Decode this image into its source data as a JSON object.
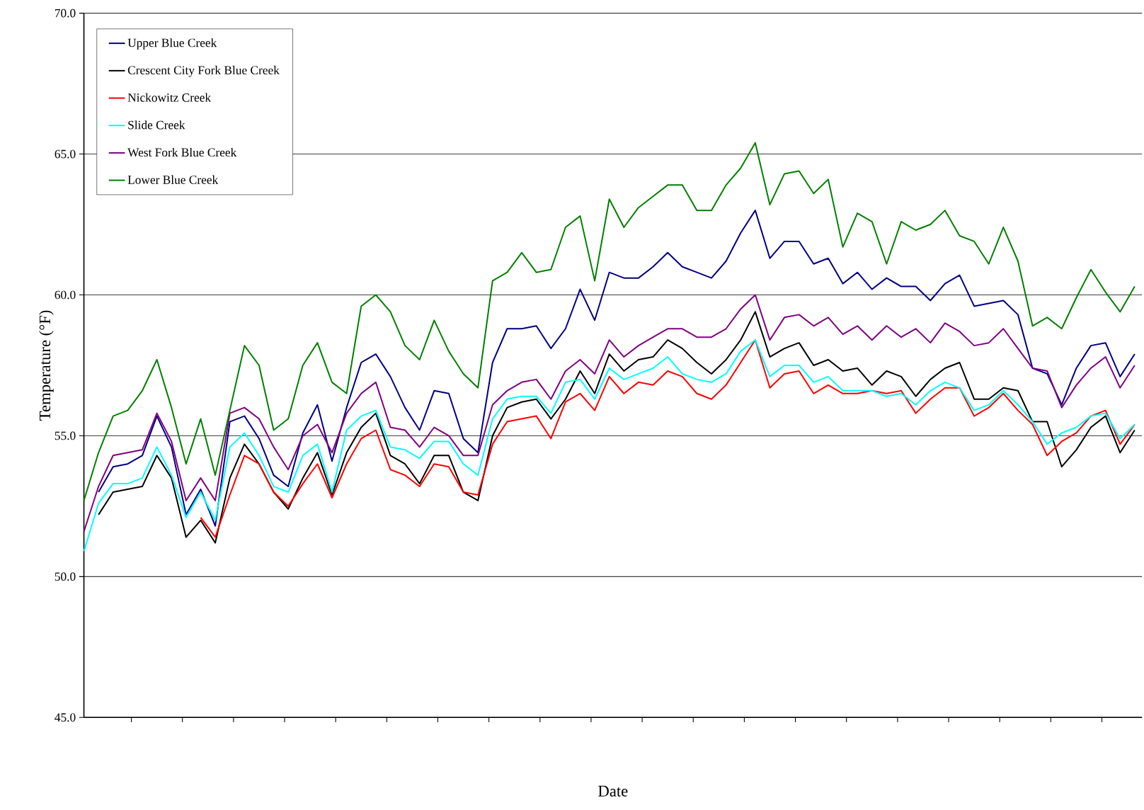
{
  "chart_data": {
    "type": "line",
    "xlabel": "Date",
    "ylabel": "Temperature (°F)",
    "categories": [
      null,
      null,
      null,
      null,
      null,
      null,
      null,
      null,
      null,
      null,
      null,
      null,
      null,
      null,
      null,
      null,
      null,
      null,
      null,
      null,
      null,
      null,
      null,
      null,
      null,
      null,
      null,
      null,
      null,
      null,
      null,
      null,
      null,
      null,
      null,
      null,
      null,
      null,
      null,
      null,
      null,
      null,
      null,
      null,
      null,
      null,
      null,
      null,
      null,
      null,
      null,
      null,
      null,
      null,
      null,
      null,
      null,
      null,
      null,
      null,
      null,
      null,
      null,
      null,
      null,
      null,
      null,
      null,
      null,
      null,
      null,
      null,
      null
    ],
    "series": [
      {
        "name": "Upper Blue Creek",
        "color": "#000080",
        "values": [
          null,
          53.0,
          53.9,
          54.0,
          54.3,
          55.7,
          54.6,
          52.2,
          53.1,
          51.8,
          55.5,
          55.7,
          54.9,
          53.6,
          53.2,
          55.1,
          56.1,
          54.1,
          56.0,
          57.6,
          57.9,
          57.1,
          56.0,
          55.2,
          56.6,
          56.5,
          54.9,
          54.4,
          57.6,
          58.8,
          58.8,
          58.9,
          58.1,
          58.8,
          60.2,
          59.1,
          60.8,
          60.6,
          60.6,
          61.0,
          61.5,
          61.0,
          60.8,
          60.6,
          61.2,
          62.2,
          63.0,
          61.3,
          61.9,
          61.9,
          61.1,
          61.3,
          60.4,
          60.8,
          60.2,
          60.6,
          60.3,
          60.3,
          59.8,
          60.4,
          60.7,
          59.6,
          59.7,
          59.8,
          59.3,
          57.4,
          57.2,
          56.1,
          57.4,
          58.2,
          58.3,
          57.1,
          57.9
        ]
      },
      {
        "name": "Crescent City Fork Blue Creek",
        "color": "#000000",
        "values": [
          null,
          52.2,
          53.0,
          53.1,
          53.2,
          54.3,
          53.5,
          51.4,
          52.0,
          51.2,
          53.5,
          54.7,
          54.0,
          53.0,
          52.4,
          53.5,
          54.4,
          52.9,
          54.4,
          55.3,
          55.8,
          54.3,
          54.0,
          53.3,
          54.3,
          54.3,
          53.0,
          52.7,
          55.0,
          56.0,
          56.2,
          56.3,
          55.6,
          56.3,
          57.3,
          56.5,
          57.9,
          57.3,
          57.7,
          57.8,
          58.4,
          58.1,
          57.6,
          57.2,
          57.7,
          58.4,
          59.4,
          57.8,
          58.1,
          58.3,
          57.5,
          57.7,
          57.3,
          57.4,
          56.8,
          57.3,
          57.1,
          56.4,
          57.0,
          57.4,
          57.6,
          56.3,
          56.3,
          56.7,
          56.6,
          55.5,
          55.5,
          53.9,
          54.5,
          55.3,
          55.7,
          54.4,
          55.2
        ]
      },
      {
        "name": "Nickowitz Creek",
        "color": "#ff0000",
        "values": [
          null,
          null,
          null,
          null,
          null,
          null,
          null,
          null,
          52.1,
          51.4,
          52.9,
          54.3,
          54.0,
          53.0,
          52.5,
          53.3,
          54.0,
          52.8,
          54.0,
          54.9,
          55.2,
          53.8,
          53.6,
          53.2,
          54.0,
          53.9,
          53.0,
          52.9,
          54.7,
          55.5,
          55.6,
          55.7,
          54.9,
          56.2,
          56.5,
          55.9,
          57.1,
          56.5,
          56.9,
          56.8,
          57.3,
          57.1,
          56.5,
          56.3,
          56.8,
          57.6,
          58.4,
          56.7,
          57.2,
          57.3,
          56.5,
          56.8,
          56.5,
          56.5,
          56.6,
          56.5,
          56.6,
          55.8,
          56.3,
          56.7,
          56.7,
          55.7,
          56.0,
          56.5,
          55.9,
          55.4,
          54.3,
          54.8,
          55.1,
          55.7,
          55.9,
          54.7,
          55.4
        ]
      },
      {
        "name": "Slide Creek",
        "color": "#00ffff",
        "values": [
          50.9,
          52.6,
          53.3,
          53.3,
          53.5,
          54.6,
          53.6,
          52.1,
          53.0,
          52.0,
          54.6,
          55.1,
          54.3,
          53.2,
          53.0,
          54.3,
          54.7,
          53.0,
          55.2,
          55.7,
          55.9,
          54.6,
          54.5,
          54.2,
          54.8,
          54.8,
          54.0,
          53.6,
          55.6,
          56.3,
          56.4,
          56.4,
          55.8,
          56.9,
          57.0,
          56.3,
          57.4,
          57.0,
          57.2,
          57.4,
          57.8,
          57.2,
          57.0,
          56.9,
          57.2,
          58.0,
          58.4,
          57.1,
          57.5,
          57.5,
          56.9,
          57.1,
          56.6,
          56.6,
          56.6,
          56.4,
          56.5,
          56.1,
          56.6,
          56.9,
          56.7,
          55.9,
          56.1,
          56.6,
          56.1,
          55.5,
          54.7,
          55.1,
          55.3,
          55.7,
          55.8,
          54.9,
          55.4
        ]
      },
      {
        "name": "West Fork Blue Creek",
        "color": "#800080",
        "values": [
          51.6,
          53.2,
          54.3,
          54.4,
          54.5,
          55.8,
          54.8,
          52.7,
          53.5,
          52.7,
          55.8,
          56.0,
          55.6,
          54.6,
          53.8,
          55.0,
          55.4,
          54.4,
          55.8,
          56.5,
          56.9,
          55.3,
          55.2,
          54.6,
          55.3,
          55.0,
          54.3,
          54.3,
          56.1,
          56.6,
          56.9,
          57.0,
          56.3,
          57.3,
          57.7,
          57.2,
          58.4,
          57.8,
          58.2,
          58.5,
          58.8,
          58.8,
          58.5,
          58.5,
          58.8,
          59.5,
          60.0,
          58.4,
          59.2,
          59.3,
          58.9,
          59.2,
          58.6,
          58.9,
          58.4,
          58.9,
          58.5,
          58.8,
          58.3,
          59.0,
          58.7,
          58.2,
          58.3,
          58.8,
          58.1,
          57.4,
          57.3,
          56.0,
          56.8,
          57.4,
          57.8,
          56.7,
          57.5
        ]
      },
      {
        "name": "Lower Blue Creek",
        "color": "#008000",
        "values": [
          52.7,
          54.4,
          55.7,
          55.9,
          56.6,
          57.7,
          56.0,
          54.0,
          55.6,
          53.6,
          55.9,
          58.2,
          57.5,
          55.2,
          55.6,
          57.5,
          58.3,
          56.9,
          56.5,
          59.6,
          60.0,
          59.4,
          58.2,
          57.7,
          59.1,
          58.0,
          57.2,
          56.7,
          60.5,
          60.8,
          61.5,
          60.8,
          60.9,
          62.4,
          62.8,
          60.5,
          63.4,
          62.4,
          63.1,
          63.5,
          63.9,
          63.9,
          63.0,
          63.0,
          63.9,
          64.5,
          65.4,
          63.2,
          64.3,
          64.4,
          63.6,
          64.1,
          61.7,
          62.9,
          62.6,
          61.1,
          62.6,
          62.3,
          62.5,
          63.0,
          62.1,
          61.9,
          61.1,
          62.4,
          61.2,
          58.9,
          59.2,
          58.8,
          59.9,
          60.9,
          60.1,
          59.4,
          60.3
        ]
      }
    ],
    "ylim": [
      45,
      70
    ],
    "yticks": [
      {
        "value": 45,
        "label": "45.0"
      },
      {
        "value": 50,
        "label": "50.0"
      },
      {
        "value": 55,
        "label": "55.0"
      },
      {
        "value": 60,
        "label": "60.0"
      },
      {
        "value": 65,
        "label": "65.0"
      },
      {
        "value": 70,
        "label": "70.0"
      }
    ],
    "grid": "y",
    "legend": "top left",
    "marker": "none",
    "line_style": "solid"
  }
}
